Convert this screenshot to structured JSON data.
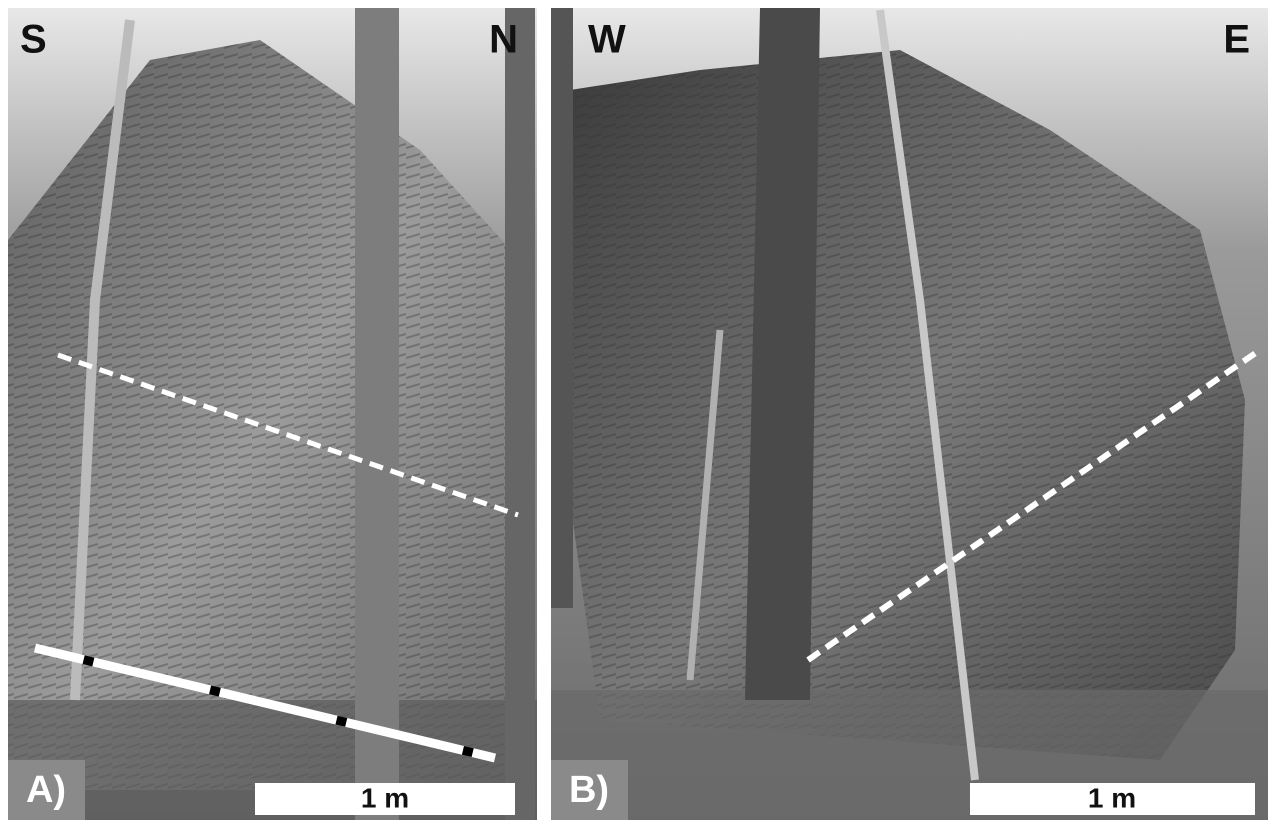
{
  "panels": [
    {
      "label": "A)",
      "left_direction": "S",
      "right_direction": "N",
      "scale_bar": "1 m"
    },
    {
      "label": "B)",
      "left_direction": "W",
      "right_direction": "E",
      "scale_bar": "1 m"
    }
  ]
}
